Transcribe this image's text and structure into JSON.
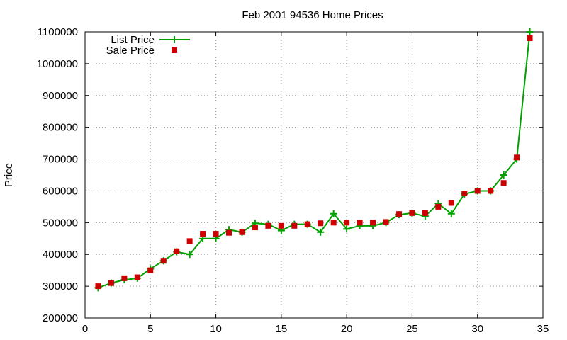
{
  "chart_data": {
    "type": "line",
    "title": "Feb 2001 94536 Home Prices",
    "xlabel": "",
    "ylabel": "Price",
    "xlim": [
      0,
      35
    ],
    "ylim": [
      200000,
      1100000
    ],
    "x_ticks": [
      0,
      5,
      10,
      15,
      20,
      25,
      30,
      35
    ],
    "y_ticks": [
      200000,
      300000,
      400000,
      500000,
      600000,
      700000,
      800000,
      900000,
      1000000,
      1100000
    ],
    "x_tick_labels": [
      "0",
      "5",
      "10",
      "15",
      "20",
      "25",
      "30",
      "35"
    ],
    "y_tick_labels": [
      "200000",
      "300000",
      "400000",
      "500000",
      "600000",
      "700000",
      "800000",
      "900000",
      "1000000",
      "1100000"
    ],
    "grid": true,
    "legend_position": "top-left",
    "series": [
      {
        "name": "List Price",
        "style": "line-plus",
        "color": "#00a000",
        "x": [
          1,
          2,
          3,
          4,
          5,
          6,
          7,
          8,
          9,
          10,
          11,
          12,
          13,
          14,
          15,
          16,
          17,
          18,
          19,
          20,
          21,
          22,
          23,
          24,
          25,
          26,
          27,
          28,
          29,
          30,
          31,
          32,
          33,
          34
        ],
        "y": [
          295000,
          310000,
          320000,
          325000,
          355000,
          380000,
          408000,
          400000,
          450000,
          450000,
          478000,
          470000,
          498000,
          495000,
          475000,
          495000,
          495000,
          470000,
          528000,
          480000,
          490000,
          490000,
          500000,
          525000,
          530000,
          520000,
          560000,
          528000,
          590000,
          600000,
          600000,
          650000,
          700000,
          1100000
        ]
      },
      {
        "name": "Sale Price",
        "style": "square-markers",
        "color": "#cc0000",
        "x": [
          1,
          2,
          3,
          4,
          5,
          6,
          7,
          8,
          9,
          10,
          11,
          12,
          13,
          14,
          15,
          16,
          17,
          18,
          19,
          20,
          21,
          22,
          23,
          24,
          25,
          26,
          27,
          28,
          29,
          30,
          31,
          32,
          33,
          34
        ],
        "y": [
          300000,
          310000,
          325000,
          328000,
          350000,
          380000,
          410000,
          442000,
          465000,
          465000,
          468000,
          470000,
          485000,
          490000,
          490000,
          490000,
          495000,
          498000,
          500000,
          500000,
          500000,
          500000,
          502000,
          527000,
          530000,
          530000,
          550000,
          562000,
          592000,
          600000,
          600000,
          625000,
          705000,
          1080000
        ]
      }
    ]
  }
}
